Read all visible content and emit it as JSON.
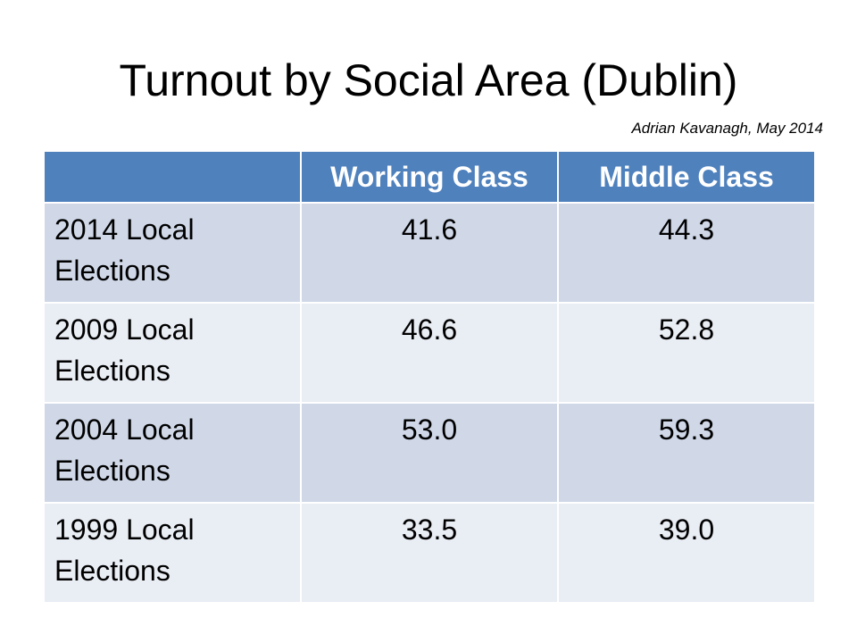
{
  "slide": {
    "title": "Turnout by Social Area (Dublin)",
    "attribution": "Adrian Kavanagh,  May 2014"
  },
  "table": {
    "headers": [
      "",
      "Working Class",
      "Middle Class"
    ],
    "rows": [
      {
        "label": "2014 Local Elections",
        "working_class": "41.6",
        "middle_class": "44.3"
      },
      {
        "label": "2009 Local Elections",
        "working_class": "46.6",
        "middle_class": "52.8"
      },
      {
        "label": "2004 Local Elections",
        "working_class": "53.0",
        "middle_class": "59.3"
      },
      {
        "label": "1999 Local Elections",
        "working_class": "33.5",
        "middle_class": "39.0"
      }
    ]
  },
  "colors": {
    "header_bg": "#4f81bd",
    "row_odd_bg": "#d0d8e8",
    "row_even_bg": "#e9edf4"
  }
}
